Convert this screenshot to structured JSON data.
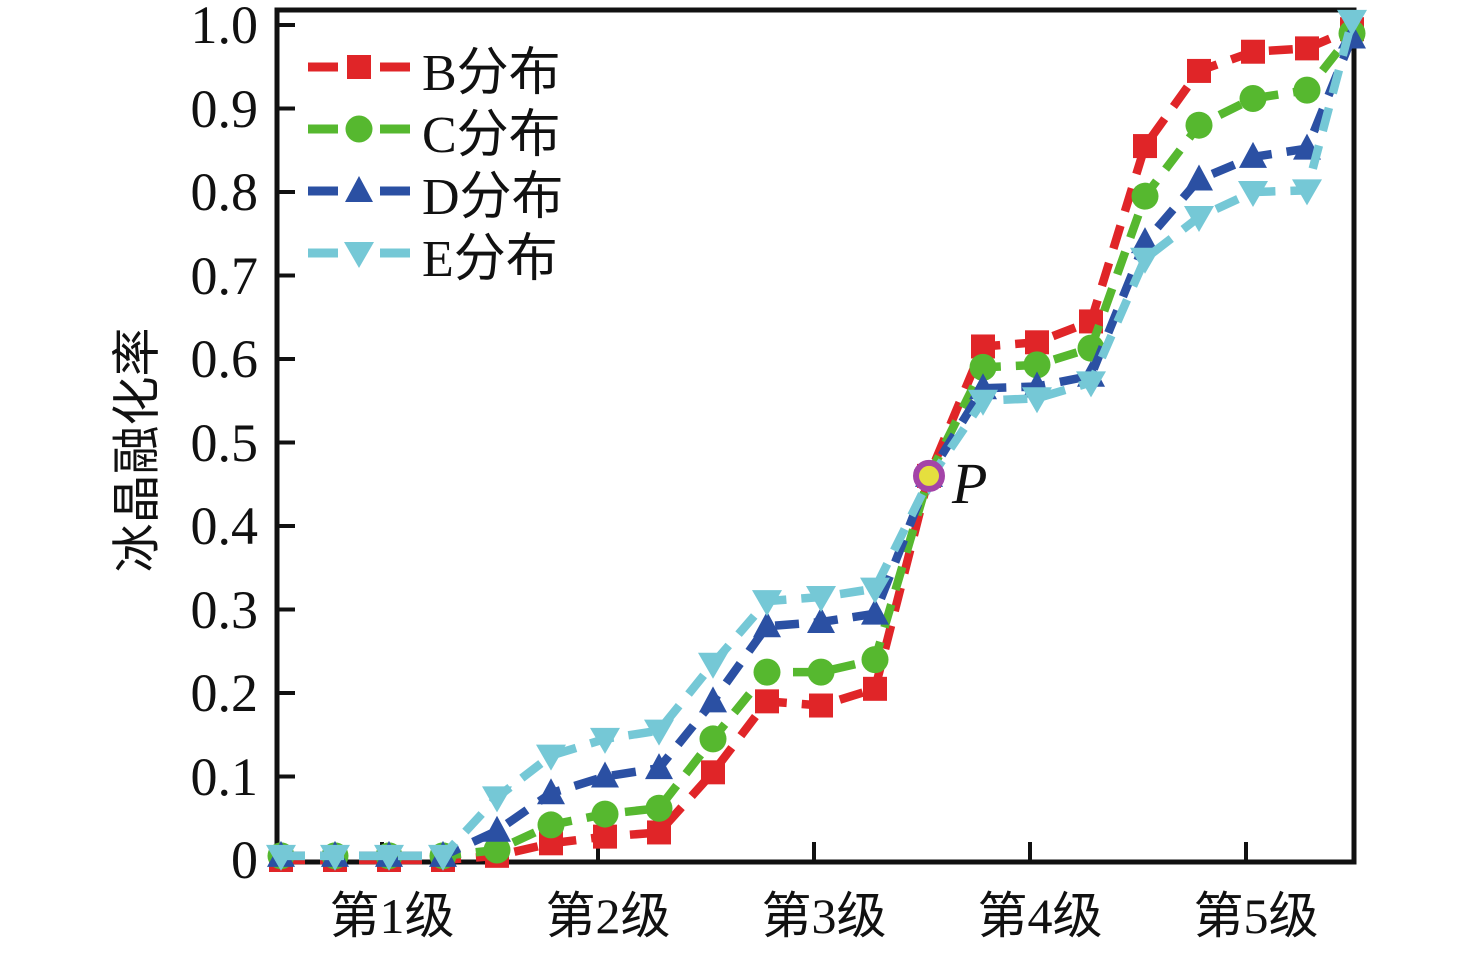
{
  "figure": {
    "background": "#ffffff"
  },
  "chart_data": {
    "type": "line",
    "title": "",
    "xlabel": "",
    "ylabel": "冰晶融化率",
    "x_tick_labels": [
      "第1级",
      "第2级",
      "第3级",
      "第4级",
      "第5级"
    ],
    "y_tick_labels": [
      "0",
      "0.1",
      "0.2",
      "0.3",
      "0.4",
      "0.5",
      "0.6",
      "0.7",
      "0.8",
      "0.9",
      "1.0"
    ],
    "y_tick_values": [
      0,
      0.1,
      0.2,
      0.3,
      0.4,
      0.5,
      0.6,
      0.7,
      0.8,
      0.9,
      1.0
    ],
    "ylim": [
      0,
      1.02
    ],
    "grid": false,
    "legend_position": "top-left",
    "line_style": "dashed",
    "points_per_level": 4,
    "n_points": 21,
    "axis_color": "#111111",
    "series": [
      {
        "name": "B分布",
        "color": "#e02528",
        "marker": "square",
        "values": [
          0,
          0,
          0,
          0,
          0.005,
          0.02,
          0.028,
          0.033,
          0.105,
          0.19,
          0.185,
          0.205,
          0.46,
          0.615,
          0.62,
          0.645,
          0.855,
          0.945,
          0.968,
          0.972,
          0.995
        ]
      },
      {
        "name": "C分布",
        "color": "#56b82f",
        "marker": "circle",
        "values": [
          0.005,
          0.005,
          0.005,
          0.005,
          0.012,
          0.042,
          0.055,
          0.062,
          0.145,
          0.225,
          0.225,
          0.24,
          0.46,
          0.59,
          0.593,
          0.613,
          0.795,
          0.88,
          0.912,
          0.922,
          0.99
        ]
      },
      {
        "name": "D分布",
        "color": "#2b50a3",
        "marker": "triangle-up",
        "values": [
          0.005,
          0.005,
          0.005,
          0.005,
          0.035,
          0.08,
          0.1,
          0.11,
          0.19,
          0.28,
          0.285,
          0.295,
          0.46,
          0.565,
          0.567,
          0.58,
          0.74,
          0.815,
          0.842,
          0.852,
          0.985
        ]
      },
      {
        "name": "E分布",
        "color": "#75c8d6",
        "marker": "triangle-down",
        "values": [
          0.005,
          0.005,
          0.005,
          0.005,
          0.075,
          0.125,
          0.145,
          0.155,
          0.235,
          0.31,
          0.315,
          0.325,
          0.455,
          0.55,
          0.553,
          0.572,
          0.72,
          0.77,
          0.8,
          0.802,
          1.005
        ]
      }
    ],
    "annotation": {
      "label": "P",
      "point_index": 12,
      "value": 0.46,
      "fill": "#e5df3e",
      "ring": "#a444a8"
    }
  }
}
